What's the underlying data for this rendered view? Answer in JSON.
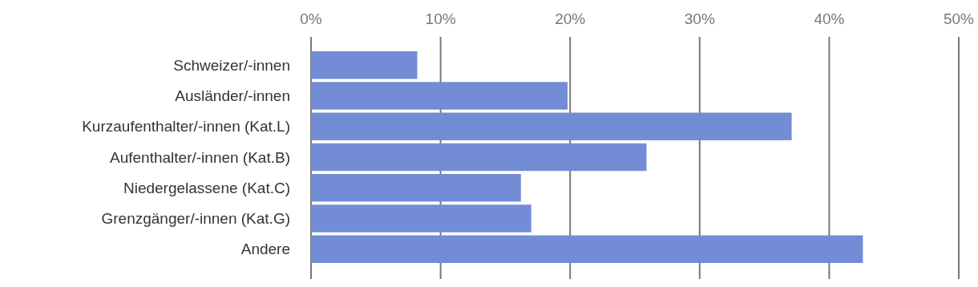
{
  "chart_data": {
    "type": "bar",
    "orientation": "horizontal",
    "categories": [
      "Schweizer/-innen",
      "Ausländer/-innen",
      "Kurzaufenthalter/-innen (Kat.L)",
      "Aufenthalter/-innen (Kat.B)",
      "Niedergelassene (Kat.C)",
      "Grenzgänger/-innen (Kat.G)",
      "Andere"
    ],
    "values": [
      8.2,
      19.8,
      37.1,
      25.9,
      16.2,
      17.0,
      42.6
    ],
    "color": "#728cd6",
    "xlim": [
      0,
      50
    ],
    "xticks": [
      {
        "value": 0,
        "label": "0%"
      },
      {
        "value": 10,
        "label": "10%"
      },
      {
        "value": 20,
        "label": "20%"
      },
      {
        "value": 30,
        "label": "30%"
      },
      {
        "value": 40,
        "label": "40%"
      },
      {
        "value": 50,
        "label": "50%"
      }
    ],
    "grid": "x"
  }
}
